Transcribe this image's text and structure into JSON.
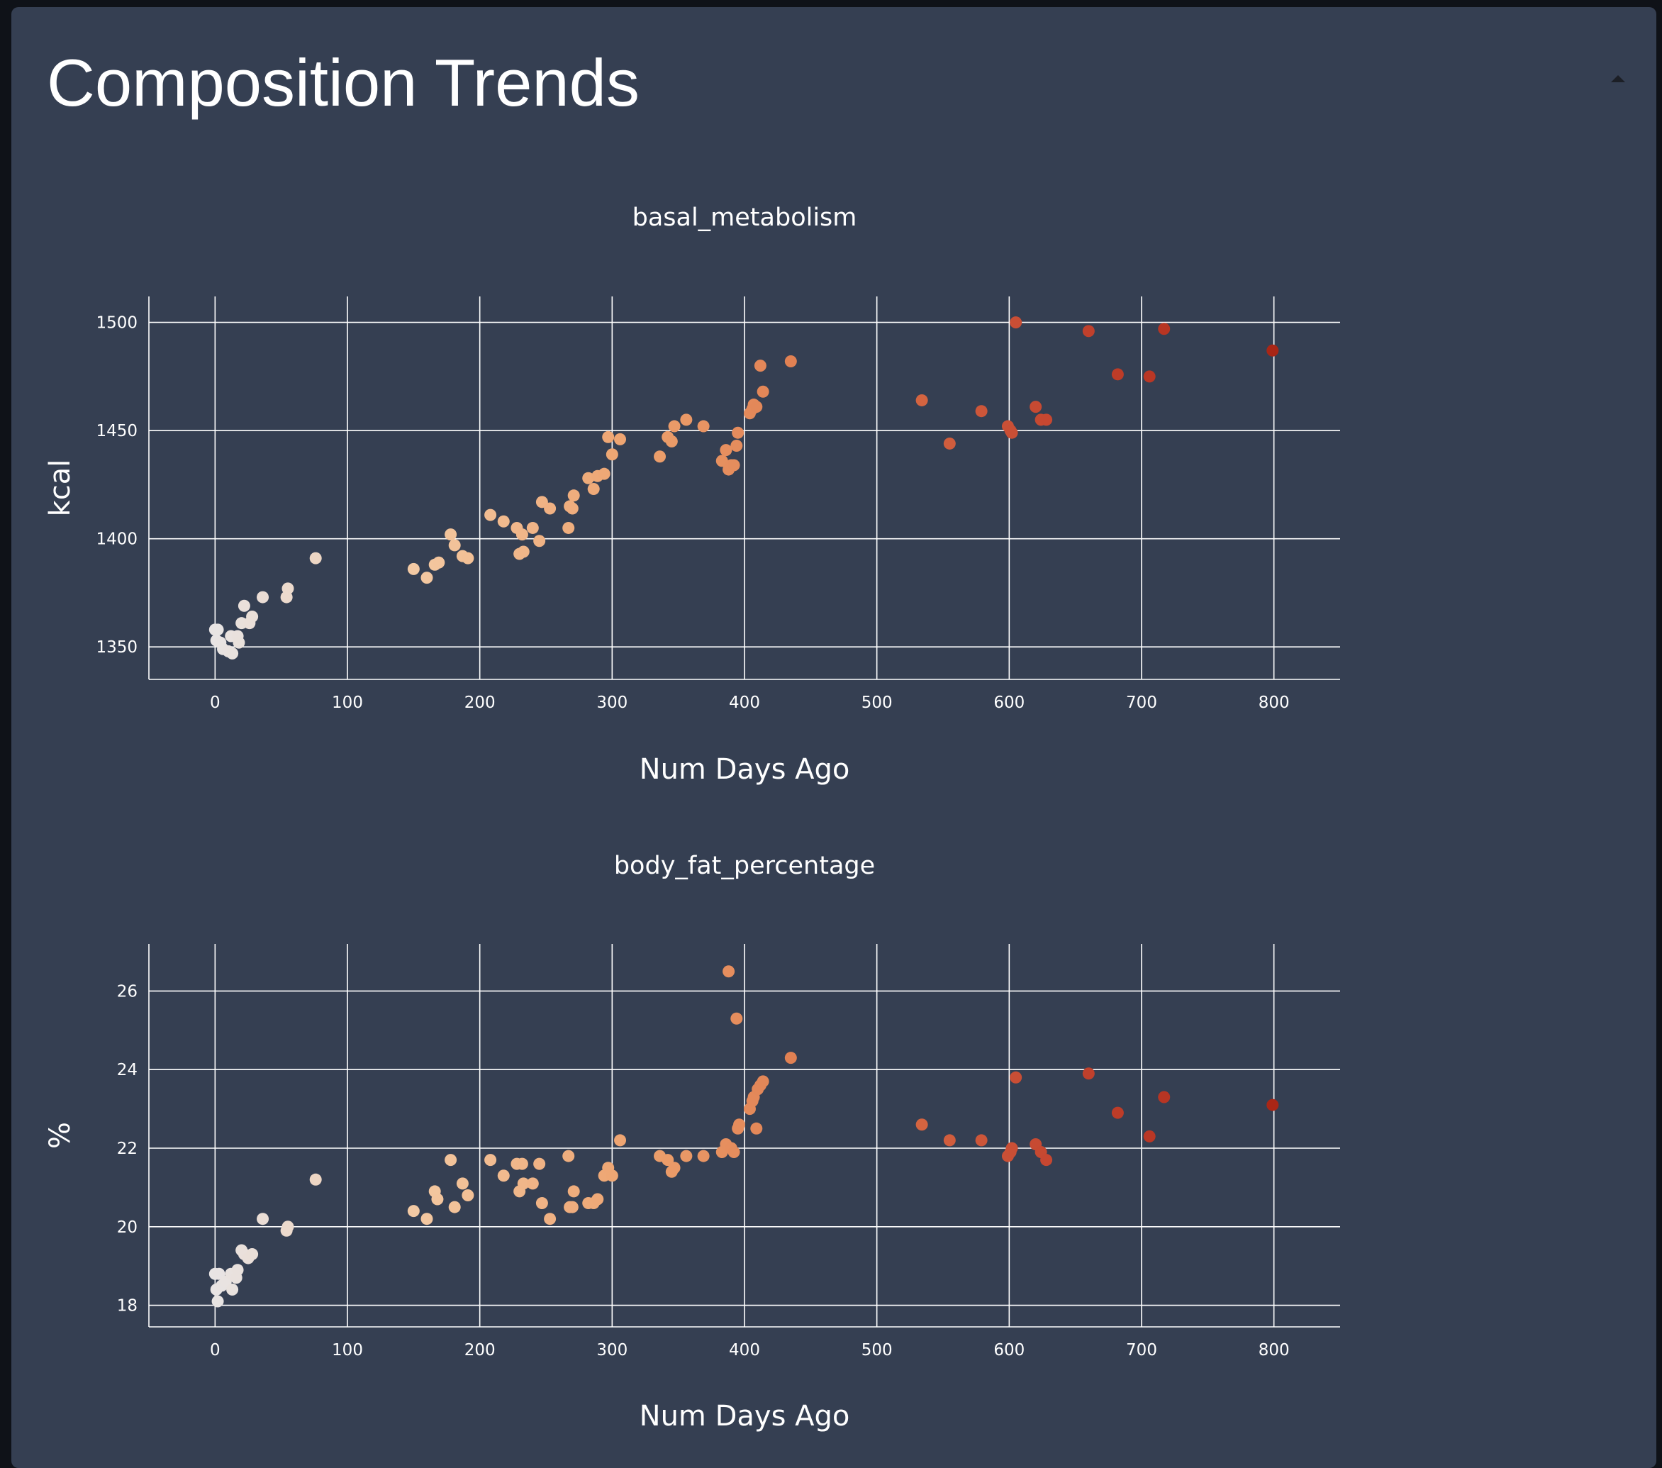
{
  "page": {
    "title": "Composition Trends",
    "collapse_icon": "caret-up-icon"
  },
  "colors": {
    "background": "#353f52",
    "gradient": [
      "#e8e4e4",
      "#f3c7a0",
      "#eda26e",
      "#dc7449",
      "#c4442f",
      "#a92616"
    ]
  },
  "chart_data": [
    {
      "type": "scatter",
      "title": "basal_metabolism",
      "xlabel": "Num Days Ago",
      "ylabel": "kcal",
      "xlim": [
        -50,
        850
      ],
      "ylim": [
        1335,
        1512
      ],
      "x_ticks": [
        0,
        100,
        200,
        300,
        400,
        500,
        600,
        700,
        800
      ],
      "y_ticks": [
        1350,
        1400,
        1450,
        1500
      ],
      "grid": true,
      "color_by": "x",
      "points": [
        [
          0,
          1358
        ],
        [
          1,
          1353
        ],
        [
          2,
          1358
        ],
        [
          4,
          1352
        ],
        [
          6,
          1349
        ],
        [
          10,
          1348
        ],
        [
          12,
          1355
        ],
        [
          13,
          1347
        ],
        [
          17,
          1355
        ],
        [
          18,
          1352
        ],
        [
          20,
          1361
        ],
        [
          22,
          1369
        ],
        [
          26,
          1361
        ],
        [
          28,
          1364
        ],
        [
          36,
          1373
        ],
        [
          54,
          1373
        ],
        [
          55,
          1377
        ],
        [
          76,
          1391
        ],
        [
          150,
          1386
        ],
        [
          160,
          1382
        ],
        [
          166,
          1388
        ],
        [
          169,
          1389
        ],
        [
          178,
          1402
        ],
        [
          181,
          1397
        ],
        [
          187,
          1392
        ],
        [
          191,
          1391
        ],
        [
          208,
          1411
        ],
        [
          218,
          1408
        ],
        [
          228,
          1405
        ],
        [
          230,
          1393
        ],
        [
          233,
          1394
        ],
        [
          232,
          1402
        ],
        [
          240,
          1405
        ],
        [
          245,
          1399
        ],
        [
          247,
          1417
        ],
        [
          253,
          1414
        ],
        [
          267,
          1405
        ],
        [
          268,
          1415
        ],
        [
          270,
          1414
        ],
        [
          271,
          1420
        ],
        [
          282,
          1428
        ],
        [
          286,
          1423
        ],
        [
          289,
          1429
        ],
        [
          294,
          1430
        ],
        [
          297,
          1447
        ],
        [
          300,
          1439
        ],
        [
          306,
          1446
        ],
        [
          336,
          1438
        ],
        [
          342,
          1447
        ],
        [
          345,
          1445
        ],
        [
          347,
          1452
        ],
        [
          356,
          1455
        ],
        [
          369,
          1452
        ],
        [
          383,
          1436
        ],
        [
          386,
          1441
        ],
        [
          388,
          1432
        ],
        [
          390,
          1434
        ],
        [
          392,
          1434
        ],
        [
          394,
          1443
        ],
        [
          395,
          1449
        ],
        [
          404,
          1458
        ],
        [
          406,
          1460
        ],
        [
          407,
          1462
        ],
        [
          409,
          1461
        ],
        [
          412,
          1480
        ],
        [
          414,
          1468
        ],
        [
          435,
          1482
        ],
        [
          534,
          1464
        ],
        [
          555,
          1444
        ],
        [
          579,
          1459
        ],
        [
          599,
          1452
        ],
        [
          601,
          1450
        ],
        [
          602,
          1449
        ],
        [
          605,
          1500
        ],
        [
          620,
          1461
        ],
        [
          624,
          1455
        ],
        [
          628,
          1455
        ],
        [
          660,
          1496
        ],
        [
          682,
          1476
        ],
        [
          706,
          1475
        ],
        [
          717,
          1497
        ],
        [
          799,
          1487
        ]
      ]
    },
    {
      "type": "scatter",
      "title": "body_fat_percentage",
      "xlabel": "Num Days Ago",
      "ylabel": "%",
      "xlim": [
        -50,
        850
      ],
      "ylim": [
        17.45,
        27.2
      ],
      "x_ticks": [
        0,
        100,
        200,
        300,
        400,
        500,
        600,
        700,
        800
      ],
      "y_ticks": [
        18,
        20,
        22,
        24,
        26
      ],
      "grid": true,
      "color_by": "x",
      "points": [
        [
          0,
          18.8
        ],
        [
          1,
          18.4
        ],
        [
          2,
          18.1
        ],
        [
          3,
          18.8
        ],
        [
          5,
          18.5
        ],
        [
          8,
          18.6
        ],
        [
          12,
          18.8
        ],
        [
          13,
          18.4
        ],
        [
          16,
          18.7
        ],
        [
          17,
          18.9
        ],
        [
          20,
          19.4
        ],
        [
          22,
          19.3
        ],
        [
          25,
          19.2
        ],
        [
          28,
          19.3
        ],
        [
          36,
          20.2
        ],
        [
          54,
          19.9
        ],
        [
          55,
          20.0
        ],
        [
          76,
          21.2
        ],
        [
          150,
          20.4
        ],
        [
          160,
          20.2
        ],
        [
          166,
          20.9
        ],
        [
          168,
          20.7
        ],
        [
          178,
          21.7
        ],
        [
          181,
          20.5
        ],
        [
          187,
          21.1
        ],
        [
          191,
          20.8
        ],
        [
          208,
          21.7
        ],
        [
          218,
          21.3
        ],
        [
          228,
          21.6
        ],
        [
          230,
          20.9
        ],
        [
          232,
          21.6
        ],
        [
          233,
          21.1
        ],
        [
          240,
          21.1
        ],
        [
          245,
          21.6
        ],
        [
          247,
          20.6
        ],
        [
          253,
          20.2
        ],
        [
          267,
          21.8
        ],
        [
          268,
          20.5
        ],
        [
          270,
          20.5
        ],
        [
          271,
          20.9
        ],
        [
          282,
          20.6
        ],
        [
          286,
          20.6
        ],
        [
          289,
          20.7
        ],
        [
          294,
          21.3
        ],
        [
          297,
          21.5
        ],
        [
          300,
          21.3
        ],
        [
          306,
          22.2
        ],
        [
          336,
          21.8
        ],
        [
          342,
          21.7
        ],
        [
          345,
          21.4
        ],
        [
          347,
          21.5
        ],
        [
          356,
          21.8
        ],
        [
          369,
          21.8
        ],
        [
          383,
          21.9
        ],
        [
          386,
          22.1
        ],
        [
          388,
          26.5
        ],
        [
          390,
          22.0
        ],
        [
          392,
          21.9
        ],
        [
          394,
          25.3
        ],
        [
          395,
          22.5
        ],
        [
          396,
          22.6
        ],
        [
          404,
          23.0
        ],
        [
          406,
          23.2
        ],
        [
          407,
          23.3
        ],
        [
          409,
          22.5
        ],
        [
          410,
          23.5
        ],
        [
          412,
          23.6
        ],
        [
          414,
          23.7
        ],
        [
          435,
          24.3
        ],
        [
          534,
          22.6
        ],
        [
          555,
          22.2
        ],
        [
          579,
          22.2
        ],
        [
          599,
          21.8
        ],
        [
          601,
          21.9
        ],
        [
          602,
          22.0
        ],
        [
          605,
          23.8
        ],
        [
          620,
          22.1
        ],
        [
          624,
          21.9
        ],
        [
          628,
          21.7
        ],
        [
          660,
          23.9
        ],
        [
          682,
          22.9
        ],
        [
          706,
          22.3
        ],
        [
          717,
          23.3
        ],
        [
          799,
          23.1
        ]
      ]
    }
  ]
}
